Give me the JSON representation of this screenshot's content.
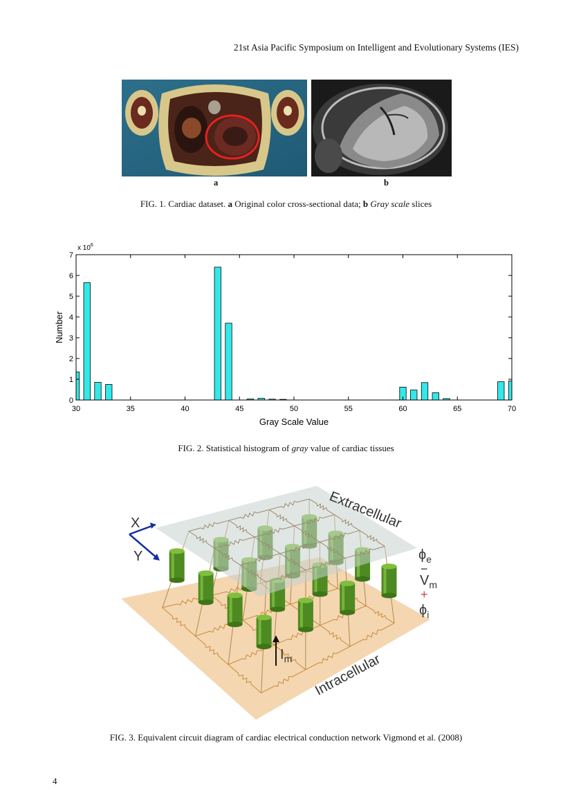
{
  "header": {
    "text": "21st Asia Pacific Symposium on Intelligent and Evolutionary Systems (IES)"
  },
  "figure1": {
    "panel_a_label": "a",
    "panel_b_label": "b",
    "caption_prefix": "FIG. 1. Cardiac dataset. ",
    "caption_a_letter": "a",
    "caption_a_text": " Original color cross-sectional data; ",
    "caption_b_letter": "b",
    "caption_b_italic": "Gray scale",
    "caption_b_text": " slices"
  },
  "figure2": {
    "caption_prefix": "FIG. 2. Statistical histogram of ",
    "caption_italic": "gray",
    "caption_suffix": " value of cardiac tissues"
  },
  "chart_data": {
    "type": "bar",
    "title": "",
    "xlabel": "Gray Scale Value",
    "ylabel": "Number",
    "y_multiplier": "x 10",
    "y_exponent": "6",
    "xlim": [
      30,
      70
    ],
    "ylim": [
      0,
      7
    ],
    "xticks": [
      30,
      35,
      40,
      45,
      50,
      55,
      60,
      65,
      70
    ],
    "yticks": [
      0,
      1,
      2,
      3,
      4,
      5,
      6,
      7
    ],
    "bar_color": "#33e8e8",
    "x": [
      30,
      31,
      32,
      33,
      43,
      44,
      46,
      47,
      48,
      49,
      60,
      61,
      62,
      63,
      64,
      69,
      70
    ],
    "values": [
      1.35,
      5.65,
      0.85,
      0.75,
      6.4,
      3.7,
      0.05,
      0.08,
      0.04,
      0.03,
      0.62,
      0.48,
      0.84,
      0.35,
      0.07,
      0.88,
      0.92
    ]
  },
  "figure3": {
    "label_extracellular": "Extracellular",
    "label_intracellular": "Intracellular",
    "label_x": "X",
    "label_y": "Y",
    "label_phi_e_sym": "ϕ",
    "label_phi_e_sub": "e",
    "label_minus": "−",
    "label_vm_main": "V",
    "label_vm_sub": "m",
    "label_plus": "+",
    "label_phi_i_sym": "ϕ",
    "label_phi_i_sub": "i",
    "label_im_main": "I",
    "label_im_sub": "m",
    "caption": "FIG. 3. Equivalent circuit diagram of cardiac electrical conduction network Vigmond et al. (2008)"
  },
  "page_number": "4"
}
